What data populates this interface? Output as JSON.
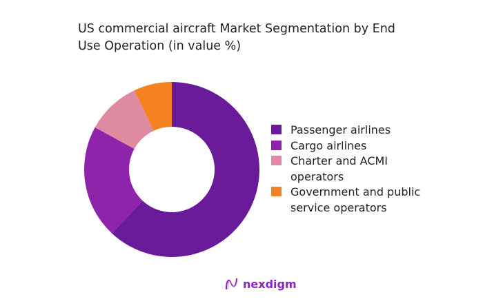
{
  "chart_data": {
    "type": "pie",
    "variant": "donut",
    "title": "US commercial aircraft Market Segmentation by End Use Operation (in value %)",
    "categories": [
      "Passenger airlines",
      "Cargo airlines",
      "Charter and ACMI operators",
      "Government and public service operators"
    ],
    "values": [
      62,
      21,
      10,
      7
    ],
    "colors": [
      "#6a1b9a",
      "#8e24aa",
      "#de8aa0",
      "#f58220"
    ],
    "legend_position": "right"
  },
  "logo": {
    "text": "nexdigm"
  }
}
